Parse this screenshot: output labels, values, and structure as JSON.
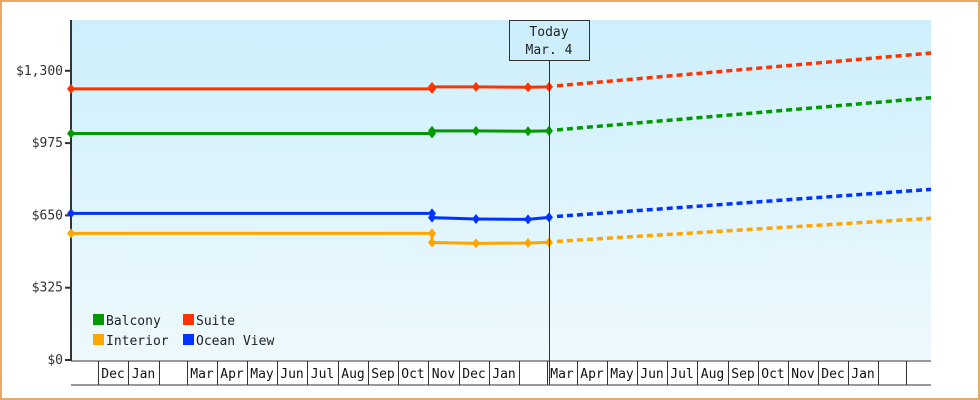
{
  "chart_data": {
    "type": "line",
    "title": "",
    "xlabel": "",
    "ylabel": "",
    "ylim": [
      0,
      1450
    ],
    "y_ticks": [
      "$0",
      "$325",
      "$650",
      "$975",
      "$1,300"
    ],
    "y_tick_values": [
      0,
      325,
      650,
      975,
      1300
    ],
    "x_month_labels": [
      "",
      "Dec",
      "Jan",
      "",
      "Mar",
      "Apr",
      "May",
      "Jun",
      "Jul",
      "Aug",
      "Sep",
      "Oct",
      "Nov",
      "Dec",
      "Jan",
      "",
      "Mar",
      "Apr",
      "May",
      "Jun",
      "Jul",
      "Aug",
      "Sep",
      "Oct",
      "Nov",
      "Dec",
      "Jan",
      "",
      ""
    ],
    "today_marker": {
      "line1": "Today",
      "line2": "Mar. 4"
    },
    "grid": false,
    "legend_position": "bottom-left inside plot",
    "series": [
      {
        "name": "Balcony",
        "color": "#009a00",
        "historical": [
          {
            "x": "Nov (prev yr)",
            "y": 1018
          },
          {
            "x": "Oct",
            "y": 1018
          },
          {
            "x": "Nov",
            "y": 1030
          },
          {
            "x": "Dec",
            "y": 1030
          },
          {
            "x": "Jan",
            "y": 1028
          },
          {
            "x": "Mar 4 (Today)",
            "y": 1030
          }
        ],
        "projected_end": 1179
      },
      {
        "name": "Suite",
        "color": "#ff3300",
        "historical": [
          {
            "x": "Nov (prev yr)",
            "y": 1219
          },
          {
            "x": "Oct",
            "y": 1219
          },
          {
            "x": "Nov",
            "y": 1228
          },
          {
            "x": "Dec",
            "y": 1228
          },
          {
            "x": "Jan",
            "y": 1226
          },
          {
            "x": "Mar 4 (Today)",
            "y": 1228
          }
        ],
        "projected_end": 1380
      },
      {
        "name": "Interior",
        "color": "#ffa500",
        "historical": [
          {
            "x": "Nov (prev yr)",
            "y": 569
          },
          {
            "x": "Oct",
            "y": 569
          },
          {
            "x": "Nov",
            "y": 528
          },
          {
            "x": "Dec",
            "y": 524
          },
          {
            "x": "Jan",
            "y": 526
          },
          {
            "x": "Mar 4 (Today)",
            "y": 529
          }
        ],
        "projected_end": 637
      },
      {
        "name": "Ocean View",
        "color": "#0033ff",
        "historical": [
          {
            "x": "Nov (prev yr)",
            "y": 659
          },
          {
            "x": "Oct",
            "y": 659
          },
          {
            "x": "Nov",
            "y": 640
          },
          {
            "x": "Dec",
            "y": 634
          },
          {
            "x": "Jan",
            "y": 632
          },
          {
            "x": "Mar 4 (Today)",
            "y": 641
          }
        ],
        "projected_end": 767
      }
    ]
  },
  "legend": {
    "items": [
      {
        "label": "Balcony",
        "color": "#009a00"
      },
      {
        "label": "Suite",
        "color": "#ff3300"
      },
      {
        "label": "Interior",
        "color": "#ffa500"
      },
      {
        "label": "Ocean View",
        "color": "#0033ff"
      }
    ]
  },
  "colors": {
    "frame_border": "#e8a868",
    "plot_top": "#cdeffc",
    "plot_bottom": "#eef9fd",
    "axis": "#333333"
  }
}
